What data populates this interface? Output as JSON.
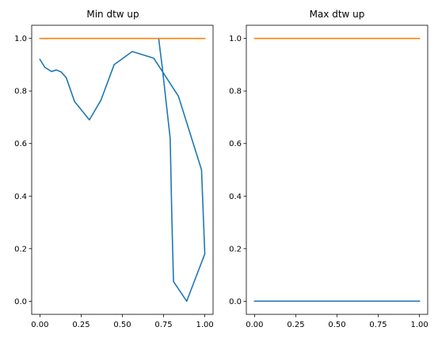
{
  "colors": {
    "series_blue": "#1f77b4",
    "series_orange": "#ff7f0e",
    "axes": "#000000",
    "background": "#ffffff"
  },
  "chart_data": [
    {
      "type": "line",
      "title": "Min dtw up",
      "xlim": [
        -0.05,
        1.05
      ],
      "ylim": [
        -0.05,
        1.05
      ],
      "xticks": [
        0.0,
        0.25,
        0.5,
        0.75,
        1.0
      ],
      "xtick_labels": [
        "0.00",
        "0.25",
        "0.50",
        "0.75",
        "1.00"
      ],
      "yticks": [
        0.0,
        0.2,
        0.4,
        0.6,
        0.8,
        1.0
      ],
      "ytick_labels": [
        "0.0",
        "0.2",
        "0.4",
        "0.6",
        "0.8",
        "1.0"
      ],
      "grid": false,
      "series": [
        {
          "color": "#1f77b4",
          "x": [
            0.0,
            0.03,
            0.07,
            0.1,
            0.13,
            0.16,
            0.21,
            0.3,
            0.37,
            0.45,
            0.56,
            0.69,
            0.84,
            0.98,
            1.0,
            0.89,
            0.81,
            0.8,
            0.79,
            0.74,
            0.72
          ],
          "y": [
            0.92,
            0.89,
            0.874,
            0.88,
            0.872,
            0.85,
            0.76,
            0.69,
            0.765,
            0.9,
            0.95,
            0.925,
            0.78,
            0.5,
            0.18,
            0.0,
            0.075,
            0.32,
            0.62,
            0.9,
            1.0
          ]
        },
        {
          "color": "#ff7f0e",
          "x": [
            0.0,
            1.0
          ],
          "y": [
            1.0,
            1.0
          ]
        }
      ]
    },
    {
      "type": "line",
      "title": "Max dtw up",
      "xlim": [
        -0.05,
        1.05
      ],
      "ylim": [
        -0.05,
        1.05
      ],
      "xticks": [
        0.0,
        0.25,
        0.5,
        0.75,
        1.0
      ],
      "xtick_labels": [
        "0.00",
        "0.25",
        "0.50",
        "0.75",
        "1.00"
      ],
      "yticks": [
        0.0,
        0.2,
        0.4,
        0.6,
        0.8,
        1.0
      ],
      "ytick_labels": [
        "0.0",
        "0.2",
        "0.4",
        "0.6",
        "0.8",
        "1.0"
      ],
      "grid": false,
      "series": [
        {
          "color": "#1f77b4",
          "x": [
            0.0,
            1.0
          ],
          "y": [
            0.0,
            0.0
          ]
        },
        {
          "color": "#ff7f0e",
          "x": [
            0.0,
            1.0
          ],
          "y": [
            1.0,
            1.0
          ]
        }
      ]
    }
  ]
}
